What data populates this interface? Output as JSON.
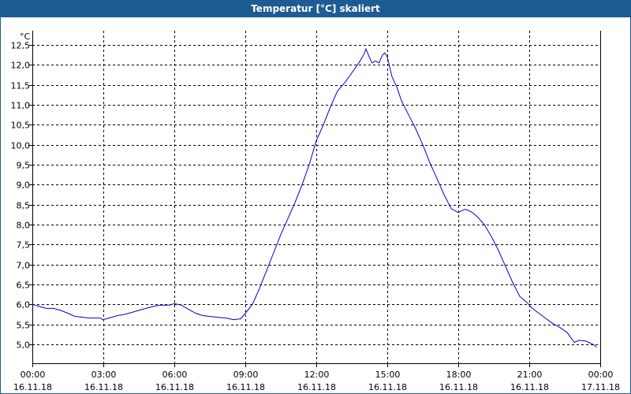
{
  "window": {
    "title": "Temperatur [°C] skaliert"
  },
  "colors": {
    "title_bar": "#1d5b93",
    "line": "#0000cc",
    "grid": "#000000"
  },
  "chart_data": {
    "type": "line",
    "title": "Temperatur [°C] skaliert",
    "ylabel": "°C",
    "xlabel": "",
    "ylim": [
      4.5,
      12.8
    ],
    "yticks": [
      "5,0",
      "5,5",
      "6,0",
      "6,5",
      "7,0",
      "7,5",
      "8,0",
      "8,5",
      "9,0",
      "9,5",
      "10,0",
      "10,5",
      "11,0",
      "11,5",
      "12,0",
      "12,5"
    ],
    "ytick_values": [
      5.0,
      5.5,
      6.0,
      6.5,
      7.0,
      7.5,
      8.0,
      8.5,
      9.0,
      9.5,
      10.0,
      10.5,
      11.0,
      11.5,
      12.0,
      12.5
    ],
    "x_tick_times": [
      "00:00",
      "03:00",
      "06:00",
      "09:00",
      "12:00",
      "15:00",
      "18:00",
      "21:00",
      "00:00"
    ],
    "x_tick_dates": [
      "16.11.18",
      "16.11.18",
      "16.11.18",
      "16.11.18",
      "16.11.18",
      "16.11.18",
      "16.11.18",
      "16.11.18",
      "17.11.18"
    ],
    "x_range_hours": [
      0,
      24
    ],
    "grid": true,
    "legend": "none",
    "series": [
      {
        "x_hours": [
          0,
          0.3,
          0.6,
          0.9,
          1.2,
          1.5,
          1.8,
          2.1,
          2.4,
          2.7,
          2.85,
          3.0,
          3.3,
          3.6,
          3.9,
          4.2,
          4.5,
          4.8,
          5.1,
          5.4,
          5.7,
          5.8,
          6.0,
          6.3,
          6.6,
          6.9,
          7.2,
          7.5,
          7.8,
          8.0,
          8.2,
          8.5,
          8.8,
          9.0,
          9.3,
          9.6,
          9.9,
          10.2,
          10.5,
          10.8,
          11.1,
          11.4,
          11.7,
          12.0,
          12.3,
          12.6,
          12.9,
          13.2,
          13.5,
          13.8,
          14.0,
          14.1,
          14.2,
          14.35,
          14.5,
          14.65,
          14.8,
          14.9,
          15.0,
          15.1,
          15.2,
          15.4,
          15.6,
          15.9,
          16.2,
          16.5,
          16.8,
          17.1,
          17.4,
          17.7,
          18.0,
          18.15,
          18.3,
          18.45,
          18.6,
          18.8,
          19.1,
          19.4,
          19.7,
          20.0,
          20.3,
          20.6,
          20.9,
          21.1,
          21.4,
          21.7,
          22.0,
          22.3,
          22.6,
          22.9,
          23.1,
          23.4,
          23.7,
          23.85
        ],
        "values": [
          6.0,
          5.95,
          5.9,
          5.9,
          5.85,
          5.78,
          5.7,
          5.68,
          5.66,
          5.66,
          5.66,
          5.62,
          5.67,
          5.72,
          5.75,
          5.8,
          5.85,
          5.9,
          5.95,
          5.98,
          5.98,
          5.98,
          6.02,
          5.98,
          5.88,
          5.78,
          5.72,
          5.7,
          5.68,
          5.67,
          5.66,
          5.62,
          5.64,
          5.78,
          6.0,
          6.4,
          6.85,
          7.3,
          7.75,
          8.15,
          8.55,
          9.0,
          9.5,
          10.1,
          10.5,
          10.95,
          11.35,
          11.55,
          11.8,
          12.05,
          12.25,
          12.4,
          12.25,
          12.05,
          12.1,
          12.05,
          12.25,
          12.3,
          12.2,
          11.95,
          11.7,
          11.45,
          11.1,
          10.75,
          10.4,
          10.0,
          9.55,
          9.15,
          8.75,
          8.4,
          8.3,
          8.35,
          8.38,
          8.35,
          8.3,
          8.2,
          8.0,
          7.7,
          7.35,
          6.95,
          6.55,
          6.2,
          6.05,
          5.92,
          5.78,
          5.65,
          5.52,
          5.42,
          5.3,
          5.05,
          5.1,
          5.08,
          5.0,
          4.93
        ]
      }
    ]
  }
}
